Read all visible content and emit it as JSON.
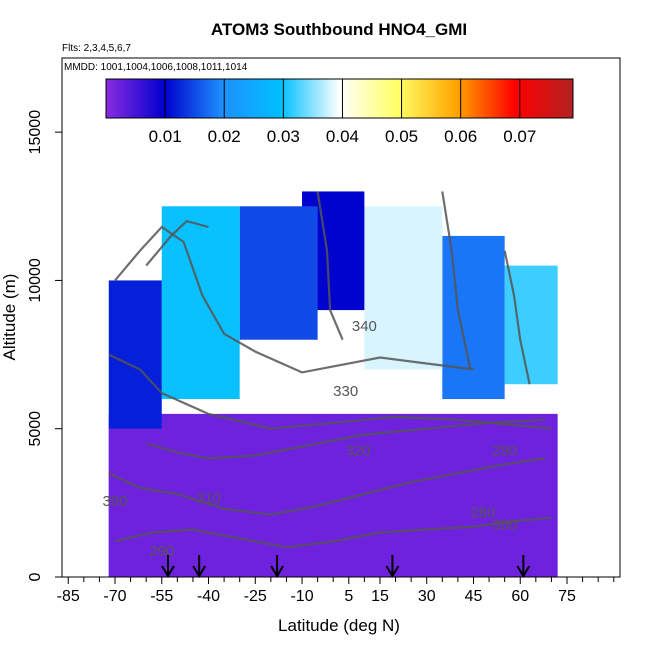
{
  "chart_data": {
    "type": "heatmap",
    "title": "ATOM3 Southbound HNO4_GMI",
    "flights_label": "Flts: 2,3,4,5,6,7",
    "dates_label": "MMDD: 1001,1004,1006,1008,1011,1014",
    "xlabel": "Latitude (deg N)",
    "ylabel": "Altitude (m)",
    "xlim": [
      -87,
      92
    ],
    "ylim": [
      0,
      17500
    ],
    "x_ticks": [
      -85,
      -70,
      -55,
      -40,
      -25,
      -10,
      5,
      15,
      30,
      45,
      60,
      75
    ],
    "x_minor_ticks": [
      -80,
      -75,
      -65,
      -60,
      -50,
      -45,
      -35,
      -30,
      -20,
      -15,
      -5,
      0,
      10,
      20,
      25,
      35,
      40,
      50,
      55,
      65,
      70,
      80,
      85,
      90
    ],
    "y_ticks": [
      0,
      5000,
      10000,
      15000
    ],
    "colorbar": {
      "range": [
        0,
        0.079
      ],
      "ticks": [
        0.01,
        0.02,
        0.03,
        0.04,
        0.05,
        0.06,
        0.07
      ],
      "colors": [
        "#8a2be2",
        "#0000cd",
        "#1e90ff",
        "#00bfff",
        "#ffffff",
        "#ffff66",
        "#ffa500",
        "#ff0000",
        "#b22222"
      ]
    },
    "profile_arrows_lat": [
      -53,
      -43,
      -18,
      19,
      61
    ],
    "contour_labels": [
      "340",
      "330",
      "320",
      "310",
      "300",
      "290",
      "280",
      "300",
      "290"
    ],
    "field": [
      {
        "lat_range": [
          -72,
          -55
        ],
        "alt_range": [
          0,
          5000
        ],
        "value": 0.002
      },
      {
        "lat_range": [
          -72,
          -55
        ],
        "alt_range": [
          5000,
          10000
        ],
        "value": 0.012
      },
      {
        "lat_range": [
          -55,
          -30
        ],
        "alt_range": [
          6000,
          12500
        ],
        "value": 0.03
      },
      {
        "lat_range": [
          -30,
          -5
        ],
        "alt_range": [
          8000,
          12500
        ],
        "value": 0.015
      },
      {
        "lat_range": [
          -10,
          10
        ],
        "alt_range": [
          9000,
          13000
        ],
        "value": 0.01
      },
      {
        "lat_range": [
          10,
          35
        ],
        "alt_range": [
          7000,
          12500
        ],
        "value": 0.038
      },
      {
        "lat_range": [
          35,
          55
        ],
        "alt_range": [
          6000,
          11500
        ],
        "value": 0.018
      },
      {
        "lat_range": [
          55,
          72
        ],
        "alt_range": [
          6500,
          10500
        ],
        "value": 0.032
      },
      {
        "lat_range": [
          -72,
          72
        ],
        "alt_range": [
          0,
          5500
        ],
        "value": 0.002
      }
    ]
  }
}
